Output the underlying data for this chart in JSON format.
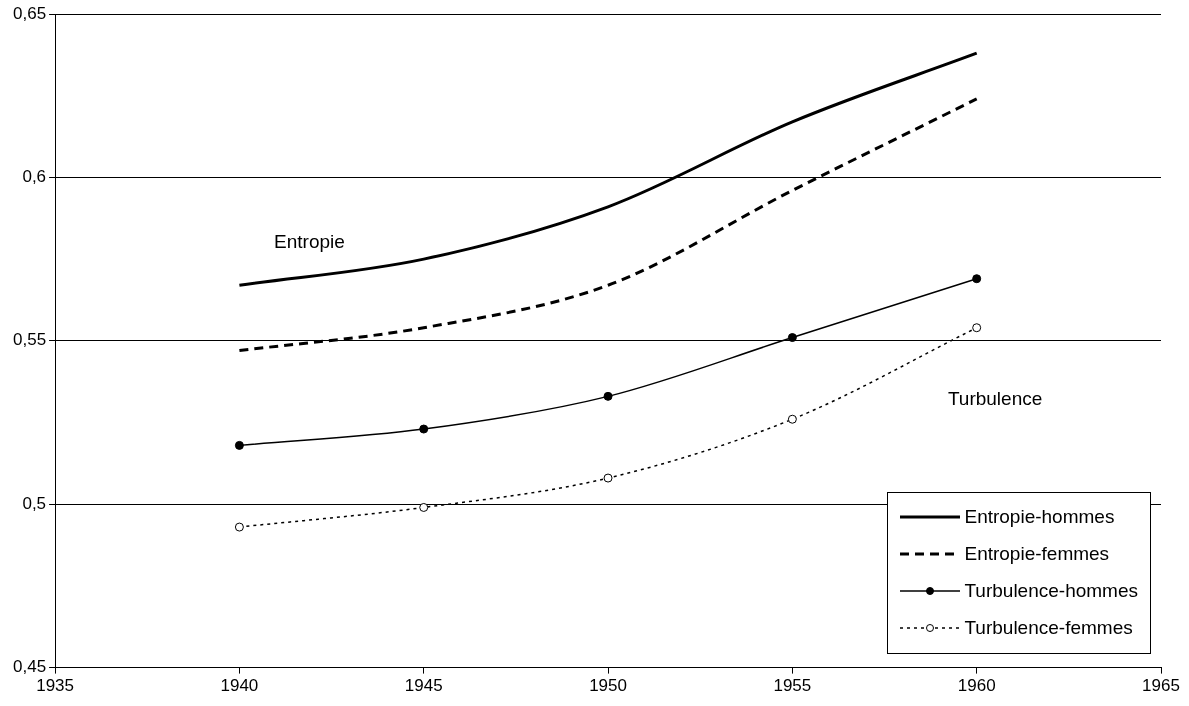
{
  "chart_data": {
    "type": "line",
    "x": [
      1940,
      1945,
      1950,
      1955,
      1960
    ],
    "xlim": [
      1935,
      1965
    ],
    "xticks": [
      1935,
      1940,
      1945,
      1950,
      1955,
      1960,
      1965
    ],
    "ylim": [
      0.45,
      0.65
    ],
    "yticks": [
      {
        "value": 0.45,
        "label": "0,45"
      },
      {
        "value": 0.5,
        "label": "0,5"
      },
      {
        "value": 0.55,
        "label": "0,55"
      },
      {
        "value": 0.6,
        "label": "0,6"
      },
      {
        "value": 0.65,
        "label": "0,65"
      }
    ],
    "grid": "y",
    "legend": "bottom right",
    "series": [
      {
        "name": "Entropie-hommes",
        "color": "#000000",
        "line_style": "solid",
        "marker": "none",
        "values": [
          0.567,
          0.575,
          0.591,
          0.617,
          0.638
        ]
      },
      {
        "name": "Entropie-femmes",
        "color": "#000000",
        "line_style": "dashed",
        "marker": "none",
        "values": [
          0.547,
          0.554,
          0.567,
          0.596,
          0.624
        ]
      },
      {
        "name": "Turbulence-hommes",
        "color": "#000000",
        "line_style": "solid",
        "marker": "circle",
        "values": [
          0.518,
          0.523,
          0.533,
          0.551,
          0.569
        ]
      },
      {
        "name": "Turbulence-femmes",
        "color": "#000000",
        "line_style": "dotted",
        "marker": "circle",
        "values": [
          0.493,
          0.499,
          0.508,
          0.526,
          0.554
        ]
      }
    ],
    "annotations": [
      "Entropie",
      "Turbulence"
    ]
  }
}
